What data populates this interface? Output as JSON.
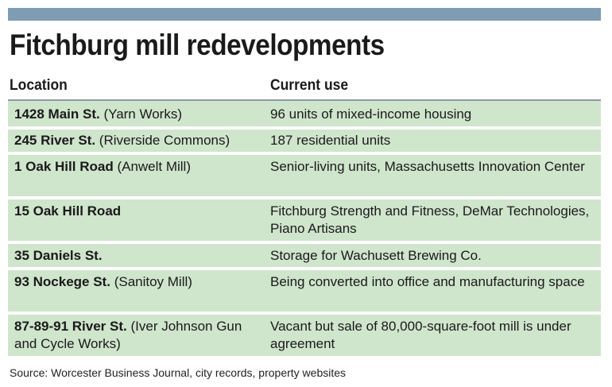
{
  "chart_data": {
    "type": "table",
    "title": "Fitchburg mill redevelopments",
    "columns": [
      "Location",
      "Current use"
    ],
    "rows": [
      {
        "address": "1428 Main St.",
        "name": "(Yarn Works)",
        "use": "96 units of mixed-income housing"
      },
      {
        "address": "245 River St.",
        "name": "(Riverside Commons)",
        "use": "187 residential units"
      },
      {
        "address": "1 Oak Hill Road",
        "name": "(Anwelt Mill)",
        "use": "Senior-living units, Massachusetts Innovation Center"
      },
      {
        "address": "15 Oak Hill Road",
        "name": "",
        "use": "Fitchburg Strength and Fitness, DeMar Technologies, Piano Artisans"
      },
      {
        "address": "35 Daniels St.",
        "name": "",
        "use": "Storage for Wachusett Brewing Co."
      },
      {
        "address": "93 Nockege St.",
        "name": "(Sanitoy Mill)",
        "use": "Being converted into office and manufacturing space"
      },
      {
        "address": "87-89-91 River St.",
        "name": "(Iver Johnson Gun and Cycle Works)",
        "use": "Vacant but sale of 80,000-square-foot mill is under agreement"
      }
    ],
    "source": "Source: Worcester Business Journal, city records, property websites"
  },
  "colors": {
    "top_bar": "#7e9cb4",
    "row_fill": "#cfe5cc",
    "rule": "#8a9aa6"
  }
}
